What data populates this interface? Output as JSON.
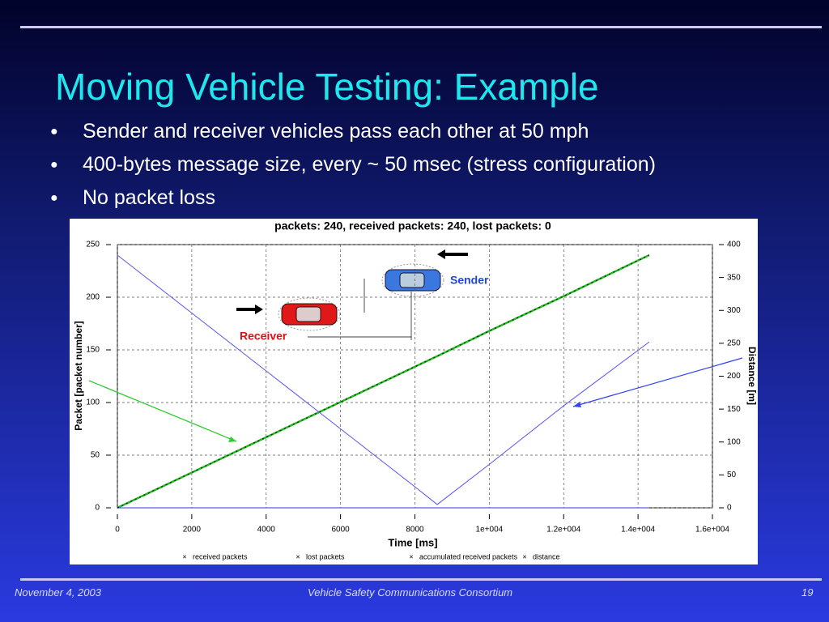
{
  "slide": {
    "title": "Moving Vehicle Testing: Example",
    "bullets": [
      "Sender and receiver vehicles pass each other at 50 mph",
      "400-bytes message size, every ~ 50 msec (stress configuration)",
      "No packet loss"
    ],
    "footer": {
      "date": "November 4, 2003",
      "center": "Vehicle Safety Communications Consortium",
      "page": "19"
    }
  },
  "chart_data": {
    "type": "line",
    "title": "packets: 240, received packets: 240, lost packets: 0",
    "x_label": "Time [ms]",
    "y_label": "Packet [packet number]",
    "y2_label": "Distance [m]",
    "annotations": [
      "Sender",
      "Receiver"
    ],
    "x": [
      0,
      2000,
      4000,
      6000,
      8000,
      8600,
      10000,
      12000,
      14300
    ],
    "series": [
      {
        "name": "received packets",
        "color": "#22bb22",
        "values": [
          0,
          33.5,
          67,
          100.5,
          134,
          144,
          168,
          201,
          240
        ]
      },
      {
        "name": "lost packets",
        "color": "#3333dd",
        "values": [
          0,
          0,
          0,
          0,
          0,
          0,
          0,
          0,
          0
        ]
      },
      {
        "name": "accumulated received packets",
        "color": "#000000",
        "values": [
          0,
          33.5,
          67,
          100.5,
          134,
          144,
          168,
          201,
          240
        ]
      },
      {
        "name": "distance",
        "color": "#5555ee",
        "axis": "y2",
        "values": [
          384,
          296,
          208,
          120,
          32,
          5,
          66,
          155,
          252
        ]
      }
    ],
    "xlim": [
      0,
      16000
    ],
    "xticks": [
      0,
      2000,
      4000,
      6000,
      8000,
      {
        "value": 10000,
        "label": "1e+004"
      },
      {
        "value": 12000,
        "label": "1.2e+004"
      },
      {
        "value": 14000,
        "label": "1.4e+004"
      },
      {
        "value": 16000,
        "label": "1.6e+004"
      }
    ],
    "ylim": [
      0,
      250
    ],
    "yticks": [
      0,
      50,
      100,
      150,
      200,
      250
    ],
    "y2lim": [
      0,
      400
    ],
    "y2ticks": [
      0,
      50,
      100,
      150,
      200,
      250,
      300,
      350,
      400
    ],
    "grid": true
  }
}
